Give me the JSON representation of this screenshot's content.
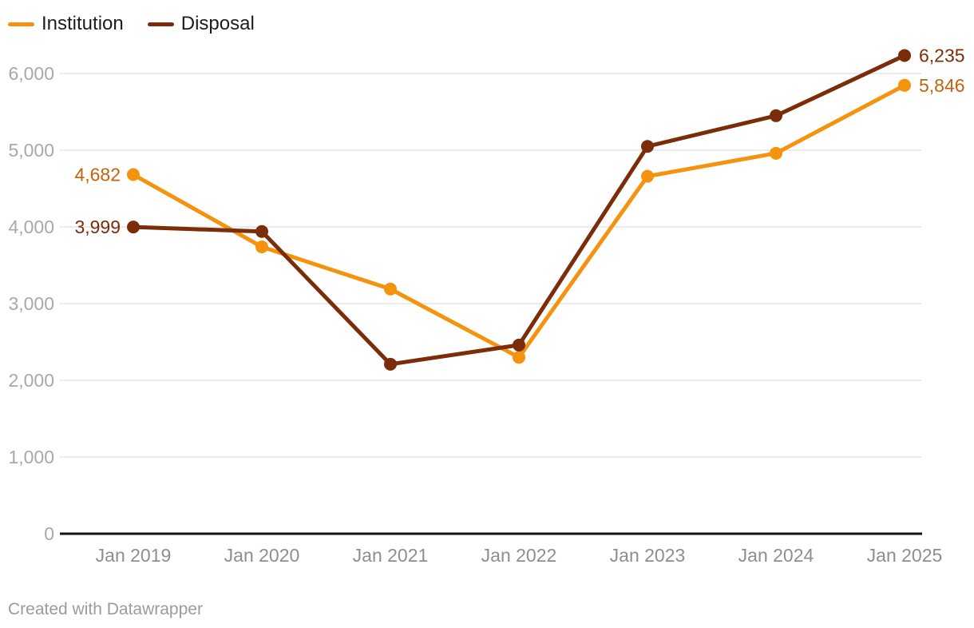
{
  "footer": {
    "credit": "Created with Datawrapper"
  },
  "legend": {
    "items": [
      {
        "label": "Institution",
        "color": "#f5920e"
      },
      {
        "label": "Disposal",
        "color": "#7b2d09"
      }
    ]
  },
  "chart_data": {
    "type": "line",
    "x": [
      "Jan 2019",
      "Jan 2020",
      "Jan 2021",
      "Jan 2022",
      "Jan 2023",
      "Jan 2024",
      "Jan 2025"
    ],
    "series": [
      {
        "name": "Institution",
        "color": "#f5920e",
        "label_color": "#c4620e",
        "values": [
          4682,
          3740,
          3190,
          2300,
          4660,
          4960,
          5846
        ],
        "first_label": "4,682",
        "last_label": "5,846"
      },
      {
        "name": "Disposal",
        "color": "#7b2d09",
        "label_color": "#7b2d09",
        "values": [
          3999,
          3940,
          2210,
          2460,
          5050,
          5450,
          6235
        ],
        "first_label": "3,999",
        "last_label": "6,235"
      }
    ],
    "ylim": [
      0,
      6000
    ],
    "yticks": [
      0,
      1000,
      2000,
      3000,
      4000,
      5000,
      6000
    ],
    "ytick_labels": [
      "0",
      "1,000",
      "2,000",
      "3,000",
      "4,000",
      "5,000",
      "6,000"
    ],
    "grid": true,
    "legend_position": "top-left",
    "colors": {
      "gridline": "#ebebeb",
      "axis": "#141414",
      "ytick_text": "#a8a8a8",
      "xtick_text": "#8e8e8e"
    }
  }
}
